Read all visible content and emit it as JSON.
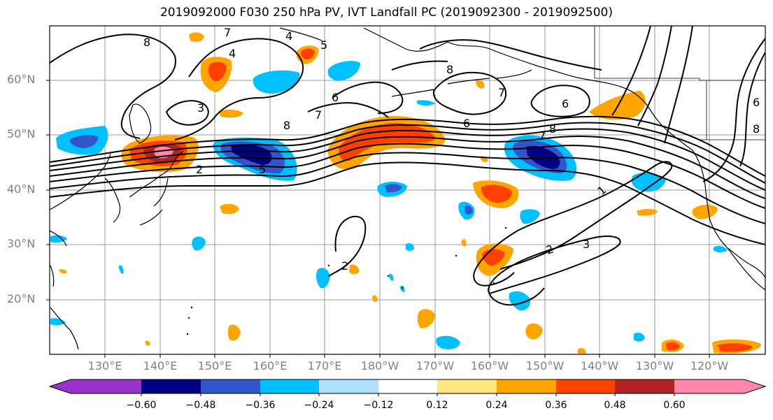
{
  "title": "2019092000 F030 250 hPa PV, IVT Landfall PC (2019092300 - 2019092500)",
  "lat_labels": [
    "60°N",
    "50°N",
    "40°N",
    "30°N",
    "20°N"
  ],
  "lon_labels": [
    "130°E",
    "140°E",
    "150°E",
    "160°E",
    "170°E",
    "180°W",
    "170°W",
    "160°W",
    "150°W",
    "140°W",
    "130°W",
    "120°W"
  ],
  "contour_labels": [
    "1",
    "2",
    "3",
    "6",
    "7",
    "8",
    "5",
    "4"
  ],
  "colorbar": {
    "ticks": [
      "−0.60",
      "−0.48",
      "−0.36",
      "−0.24",
      "−0.12",
      "0.12",
      "0.24",
      "0.36",
      "0.48",
      "0.60"
    ],
    "colors": [
      "#9933cc",
      "#000080",
      "#3355cc",
      "#00bfff",
      "#b0e0ff",
      "#ffffff",
      "#ffe680",
      "#ffa500",
      "#ff4000",
      "#b22222",
      "#ff88aa"
    ]
  }
}
